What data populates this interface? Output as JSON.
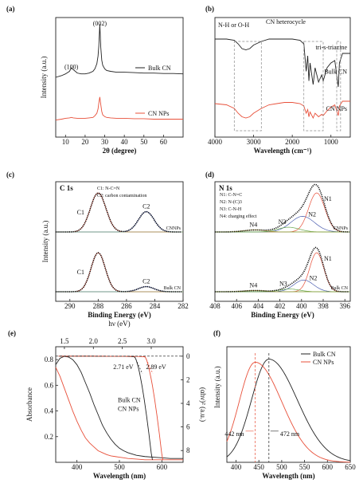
{
  "chart_data": [
    {
      "type": "line",
      "panel": "(a)",
      "xlabel": "2θ (degree)",
      "ylabel": "Intensity (a.u.)",
      "xlim": [
        5,
        70
      ],
      "xticks": [
        "10",
        "20",
        "30",
        "40",
        "50",
        "60"
      ],
      "peaks": [
        {
          "label": "(100)",
          "x": 13.0
        },
        {
          "label": "(002)",
          "x": 27.5
        }
      ],
      "series": [
        {
          "name": "Bulk CN",
          "color": "#222222",
          "x": [
            5,
            8,
            10,
            12,
            13,
            14,
            16,
            18,
            20,
            22,
            24,
            25,
            26,
            26.6,
            27,
            27.5,
            28,
            28.5,
            29,
            30,
            31,
            33,
            36,
            40,
            45,
            50,
            55,
            60,
            65,
            70
          ],
          "y": [
            0.7,
            0.72,
            0.74,
            0.77,
            0.81,
            0.79,
            0.75,
            0.74,
            0.74,
            0.75,
            0.77,
            0.8,
            0.86,
            0.95,
            1.07,
            1.32,
            1.05,
            0.9,
            0.84,
            0.8,
            0.78,
            0.77,
            0.76,
            0.76,
            0.755,
            0.75,
            0.75,
            0.745,
            0.745,
            0.74
          ]
        },
        {
          "name": "CN NPs",
          "color": "#e8503a",
          "x": [
            5,
            8,
            10,
            12,
            13,
            14,
            16,
            18,
            20,
            22,
            24,
            25,
            26,
            26.6,
            27,
            27.5,
            28,
            28.5,
            29,
            30,
            31,
            33,
            36,
            40,
            45,
            50,
            55,
            60,
            65,
            70
          ],
          "y": [
            0.2,
            0.21,
            0.22,
            0.225,
            0.23,
            0.225,
            0.22,
            0.22,
            0.22,
            0.225,
            0.23,
            0.25,
            0.28,
            0.33,
            0.4,
            0.47,
            0.38,
            0.3,
            0.26,
            0.24,
            0.23,
            0.225,
            0.22,
            0.22,
            0.215,
            0.215,
            0.21,
            0.21,
            0.21,
            0.21
          ]
        }
      ]
    },
    {
      "type": "line",
      "panel": "(b)",
      "xlabel": "Wavelength (cm⁻¹)",
      "xlim": [
        4000,
        500
      ],
      "xticks": [
        "4000",
        "3000",
        "2000",
        "1000"
      ],
      "annotations": [
        "N-H or O-H",
        "CN heterocycle",
        "tri-s-triazine"
      ],
      "series": [
        {
          "name": "Bulk CN",
          "color": "#222222",
          "x": [
            4000,
            3700,
            3500,
            3400,
            3300,
            3200,
            3100,
            3000,
            2800,
            2600,
            2400,
            2200,
            2000,
            1800,
            1700,
            1640,
            1600,
            1570,
            1540,
            1460,
            1410,
            1320,
            1240,
            1200,
            1100,
            1000,
            900,
            810,
            780,
            700,
            600,
            500
          ],
          "y": [
            0.82,
            0.82,
            0.81,
            0.78,
            0.74,
            0.73,
            0.74,
            0.77,
            0.8,
            0.82,
            0.82,
            0.82,
            0.82,
            0.81,
            0.78,
            0.55,
            0.68,
            0.47,
            0.62,
            0.44,
            0.58,
            0.46,
            0.52,
            0.47,
            0.58,
            0.62,
            0.64,
            0.42,
            0.62,
            0.7,
            0.7,
            0.7
          ]
        },
        {
          "name": "CN NPs",
          "color": "#e8503a",
          "x": [
            4000,
            3700,
            3500,
            3400,
            3300,
            3200,
            3100,
            3000,
            2800,
            2600,
            2400,
            2200,
            2000,
            1800,
            1700,
            1640,
            1600,
            1570,
            1540,
            1460,
            1410,
            1320,
            1240,
            1200,
            1100,
            1000,
            900,
            810,
            780,
            700,
            600,
            500
          ],
          "y": [
            0.28,
            0.27,
            0.24,
            0.2,
            0.17,
            0.16,
            0.17,
            0.2,
            0.24,
            0.27,
            0.28,
            0.29,
            0.29,
            0.28,
            0.26,
            0.2,
            0.23,
            0.17,
            0.21,
            0.16,
            0.2,
            0.17,
            0.19,
            0.18,
            0.22,
            0.25,
            0.27,
            0.18,
            0.26,
            0.3,
            0.3,
            0.3
          ]
        }
      ]
    },
    {
      "type": "line",
      "panel": "(c)",
      "title": "C 1s",
      "xlabel": "Binding Energy (eV)",
      "ylabel": "Intensity (a.u.)",
      "xlim": [
        291,
        282
      ],
      "xticks": [
        "290",
        "288",
        "286",
        "284",
        "282"
      ],
      "legend": [
        "C1: N-C=N",
        "C2: carbon contamination"
      ],
      "peak_labels": [
        "C1",
        "C2",
        "C1",
        "C2"
      ],
      "series": [
        {
          "name": "CNNPs",
          "color": "#e8503a",
          "peaks": [
            {
              "center": 288.0,
              "height": 1.0,
              "width": 0.55
            },
            {
              "center": 284.6,
              "height": 0.52,
              "width": 0.55
            }
          ]
        },
        {
          "name": "Bulk CN",
          "color": "#e8503a",
          "peaks": [
            {
              "center": 288.0,
              "height": 1.0,
              "width": 0.5
            },
            {
              "center": 284.6,
              "height": 0.13,
              "width": 0.55
            }
          ]
        }
      ]
    },
    {
      "type": "line",
      "panel": "(d)",
      "title": "N 1s",
      "xlabel": "Binding Energy (eV)",
      "xlim": [
        408,
        395.5
      ],
      "xticks": [
        "408",
        "406",
        "404",
        "402",
        "400",
        "398",
        "396"
      ],
      "legend": [
        "N1: C-N=C",
        "N2: N-(C)3",
        "N3: C-N-H",
        "N4: charging effect"
      ],
      "peak_labels": [
        "N1",
        "N2",
        "N3",
        "N4"
      ],
      "series": [
        {
          "name": "CNNPs",
          "color": "#e8503a",
          "peaks": [
            {
              "center": 398.6,
              "height": 1.0,
              "width": 0.75
            },
            {
              "center": 399.9,
              "height": 0.4,
              "width": 1.1
            },
            {
              "center": 401.2,
              "height": 0.12,
              "width": 1.0
            },
            {
              "center": 404.3,
              "height": 0.05,
              "width": 1.0
            }
          ]
        },
        {
          "name": "Bulk CN",
          "color": "#e8503a",
          "peaks": [
            {
              "center": 398.6,
              "height": 1.0,
              "width": 0.65
            },
            {
              "center": 399.8,
              "height": 0.3,
              "width": 0.9
            },
            {
              "center": 401.1,
              "height": 0.07,
              "width": 0.9
            },
            {
              "center": 404.3,
              "height": 0.03,
              "width": 1.0
            }
          ]
        }
      ]
    },
    {
      "type": "line",
      "panel": "(e)",
      "xlabel": "Wavelength (nm)",
      "ylabel": "Absorbance",
      "y2label": "(αhν)² (a.u.)",
      "top_axis_label": "hν (eV)",
      "xlim": [
        350,
        650
      ],
      "ylim": [
        0,
        0.9
      ],
      "xticks": [
        "400",
        "500",
        "600"
      ],
      "yticks": [
        "0.2",
        "0.4",
        "0.6",
        "0.8"
      ],
      "top_ticks": [
        "1.5",
        "2.0",
        "2.5",
        "3.0"
      ],
      "y2ticks": [
        "0",
        "2",
        "4",
        "6",
        "8"
      ],
      "band_gaps": [
        {
          "label": "2.71 eV",
          "series": "Bulk CN"
        },
        {
          "label": "2.89 eV",
          "series": "CN NPs"
        }
      ],
      "series": [
        {
          "name": "Bulk CN",
          "color": "#222222",
          "x": [
            350,
            360,
            370,
            380,
            390,
            400,
            410,
            420,
            430,
            440,
            450,
            460,
            470,
            480,
            490,
            500,
            510,
            520,
            540,
            560,
            580,
            600,
            620,
            640,
            650
          ],
          "y": [
            0.76,
            0.81,
            0.825,
            0.82,
            0.8,
            0.76,
            0.7,
            0.62,
            0.54,
            0.45,
            0.37,
            0.29,
            0.23,
            0.18,
            0.14,
            0.11,
            0.09,
            0.075,
            0.055,
            0.045,
            0.04,
            0.035,
            0.03,
            0.03,
            0.03
          ]
        },
        {
          "name": "CN NPs",
          "color": "#e8503a",
          "x": [
            350,
            360,
            370,
            380,
            390,
            400,
            410,
            420,
            430,
            440,
            450,
            460,
            470,
            480,
            490,
            500,
            510,
            520,
            540,
            560,
            580,
            600,
            620,
            640,
            650
          ],
          "y": [
            0.74,
            0.67,
            0.58,
            0.49,
            0.4,
            0.32,
            0.25,
            0.19,
            0.15,
            0.12,
            0.09,
            0.075,
            0.06,
            0.05,
            0.045,
            0.04,
            0.035,
            0.03,
            0.025,
            0.02,
            0.02,
            0.02,
            0.02,
            0.02,
            0.02
          ]
        }
      ]
    },
    {
      "type": "line",
      "panel": "(f)",
      "xlabel": "Wavelength (nm)",
      "ylabel": "Intensity (a.u.)",
      "xlim": [
        380,
        650
      ],
      "xticks": [
        "400",
        "450",
        "500",
        "550",
        "600",
        "650"
      ],
      "peak_labels": [
        {
          "label": "442 nm",
          "x": 442,
          "series": "CN NPs"
        },
        {
          "label": "472 nm",
          "x": 472,
          "series": "Bulk CN"
        }
      ],
      "series": [
        {
          "name": "Bulk CN",
          "color": "#222222",
          "center": 472,
          "height": 1.0,
          "left_width": 38,
          "right_width": 62
        },
        {
          "name": "CN NPs",
          "color": "#e8503a",
          "center": 442,
          "height": 0.97,
          "left_width": 35,
          "right_width": 58
        }
      ]
    }
  ]
}
